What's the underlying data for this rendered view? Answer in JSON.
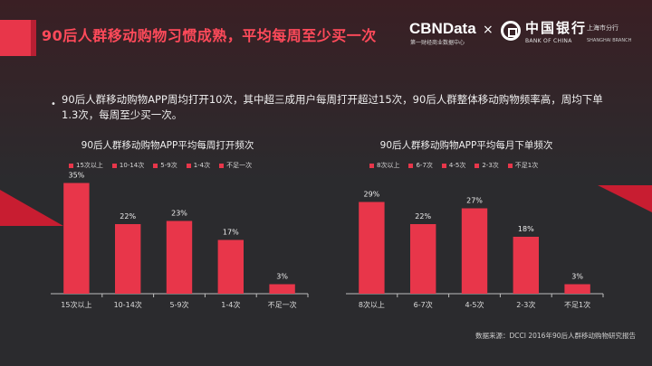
{
  "slide": {
    "title": "90后人群移动购物习惯成熟，平均每周至少买一次",
    "bullet": "90后人群移动购物APP周均打开10次，其中超三成用户每周打开超过15次，90后人群整体移动购物频率高，周均下单1.3次，每周至少买一次。",
    "source": "数据来源：DCCI 2016年90后人群移动购物研究报告"
  },
  "logos": {
    "cbn_name": "CBNData",
    "cbn_sub": "第一财经商业数据中心",
    "separator": "×",
    "boc_name": "中国银行",
    "boc_en": "BANK OF CHINA",
    "boc_branch": "上海市分行",
    "boc_branch_en": "SHANGHAI BRANCH"
  },
  "colors": {
    "accent": "#e8364a",
    "background": "#2b2b2e",
    "title": "#ff4a5a"
  },
  "chart_data": [
    {
      "type": "bar",
      "title": "90后人群移动购物APP平均每周打开频次",
      "categories": [
        "15次以上",
        "10-14次",
        "5-9次",
        "1-4次",
        "不足一次"
      ],
      "values": [
        35,
        22,
        23,
        17,
        3
      ],
      "labels": [
        "35%",
        "22%",
        "23%",
        "17%",
        "3%"
      ],
      "legend": [
        "15次以上",
        "10-14次",
        "5-9次",
        "1-4次",
        "不足一次"
      ],
      "ylim": [
        0,
        40
      ],
      "grid": false,
      "legend_position": "top"
    },
    {
      "type": "bar",
      "title": "90后人群移动购物APP平均每月下单频次",
      "categories": [
        "8次以上",
        "6-7次",
        "4-5次",
        "2-3次",
        "不足1次"
      ],
      "values": [
        29,
        22,
        27,
        18,
        3
      ],
      "labels": [
        "29%",
        "22%",
        "27%",
        "18%",
        "3%"
      ],
      "legend": [
        "8次以上",
        "6-7次",
        "4-5次",
        "2-3次",
        "不足1次"
      ],
      "ylim": [
        0,
        40
      ],
      "grid": false,
      "legend_position": "top"
    }
  ]
}
